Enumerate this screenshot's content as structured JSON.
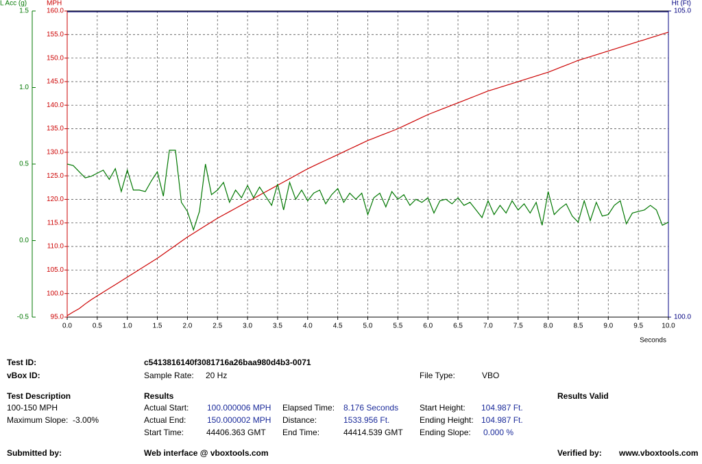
{
  "chart_data": {
    "type": "line",
    "ylabel": "MPH",
    "y2label": "L Acc (g)",
    "y3label": "Ht (Ft)",
    "xlabel": "Seconds",
    "xlim": [
      0,
      10
    ],
    "xticks": [
      {
        "value": 0,
        "label": "0.0"
      },
      0.5,
      {
        "value": 1,
        "label": "1.0"
      },
      1.5,
      {
        "value": 2,
        "label": "2.0"
      },
      2.5,
      {
        "value": 3,
        "label": "3.0"
      },
      3.5,
      {
        "value": 4,
        "label": "4.0"
      },
      4.5,
      {
        "value": 5,
        "label": "5.0"
      },
      5.5,
      {
        "value": 6,
        "label": "6.0"
      },
      6.5,
      {
        "value": 7,
        "label": "7.0"
      },
      7.5,
      {
        "value": 8,
        "label": "8.0"
      },
      8.5,
      {
        "value": 9,
        "label": "9.0"
      },
      9.5,
      {
        "value": 10,
        "label": "10.0"
      }
    ],
    "ylim": [
      95,
      160
    ],
    "yticks": [
      {
        "value": 95,
        "label": "95.0"
      },
      {
        "value": 100,
        "label": "100.0"
      },
      {
        "value": 105,
        "label": "105.0"
      },
      {
        "value": 110,
        "label": "110.0"
      },
      {
        "value": 115,
        "label": "115.0"
      },
      {
        "value": 120,
        "label": "120.0"
      },
      {
        "value": 125,
        "label": "125.0"
      },
      {
        "value": 130,
        "label": "130.0"
      },
      {
        "value": 135,
        "label": "135.0"
      },
      {
        "value": 140,
        "label": "140.0"
      },
      {
        "value": 145,
        "label": "145.0"
      },
      {
        "value": 150,
        "label": "150.0"
      },
      {
        "value": 155,
        "label": "155.0"
      },
      {
        "value": 160,
        "label": "160.0"
      }
    ],
    "y2lim": [
      -0.5,
      1.5
    ],
    "y2ticks": [
      -0.5,
      {
        "value": 0,
        "label": "0.0"
      },
      0.5,
      {
        "value": 1,
        "label": "1.0"
      },
      1.5
    ],
    "y3lim": [
      100,
      105
    ],
    "y3ticks": [
      {
        "value": 100,
        "label": "100.0"
      },
      {
        "value": 105,
        "label": "105.0"
      }
    ],
    "grid": true,
    "x": [
      0,
      0.1,
      0.2,
      0.3,
      0.4,
      0.5,
      0.6,
      0.7,
      0.8,
      0.9,
      1,
      1.1,
      1.2,
      1.3,
      1.4,
      1.5,
      1.6,
      1.7,
      1.8,
      1.9,
      2,
      2.1,
      2.2,
      2.3,
      2.4,
      2.5,
      2.6,
      2.7,
      2.8,
      2.9,
      3,
      3.1,
      3.2,
      3.3,
      3.4,
      3.5,
      3.6,
      3.7,
      3.8,
      3.9,
      4,
      4.1,
      4.2,
      4.3,
      4.4,
      4.5,
      4.6,
      4.7,
      4.8,
      4.9,
      5,
      5.1,
      5.2,
      5.3,
      5.4,
      5.5,
      5.6,
      5.7,
      5.8,
      5.9,
      6,
      6.1,
      6.2,
      6.3,
      6.4,
      6.5,
      6.6,
      6.7,
      6.8,
      6.9,
      7,
      7.1,
      7.2,
      7.3,
      7.4,
      7.5,
      7.6,
      7.7,
      7.8,
      7.9,
      8,
      8.1,
      8.2,
      8.3,
      8.4,
      8.5,
      8.6,
      8.7,
      8.8,
      8.9,
      9,
      9.1,
      9.2,
      9.3,
      9.4,
      9.5,
      9.6,
      9.7,
      9.8,
      9.9,
      10
    ],
    "series": [
      {
        "axis": "y",
        "color": "#cc0000",
        "values": [
          95.3,
          96.1,
          96.8,
          97.8,
          98.7,
          99.5,
          100.3,
          101.1,
          101.9,
          102.7,
          103.5,
          104.3,
          105.1,
          105.9,
          106.7,
          107.5,
          108.4,
          109.3,
          110.2,
          111.1,
          112.0,
          112.8,
          113.6,
          114.4,
          115.2,
          116.0,
          116.7,
          117.4,
          118.1,
          118.8,
          119.5,
          120.2,
          120.9,
          121.6,
          122.3,
          123.0,
          123.7,
          124.4,
          125.1,
          125.8,
          126.5,
          127.1,
          127.7,
          128.3,
          128.9,
          129.5,
          130.1,
          130.7,
          131.3,
          131.9,
          132.5,
          133.0,
          133.5,
          134.0,
          134.5,
          135.0,
          135.6,
          136.2,
          136.8,
          137.4,
          138.0,
          138.5,
          139.0,
          139.5,
          140.0,
          140.5,
          141.0,
          141.5,
          142.0,
          142.5,
          143.0,
          143.4,
          143.8,
          144.2,
          144.6,
          145.0,
          145.4,
          145.8,
          146.2,
          146.6,
          147.0,
          147.5,
          148.0,
          148.5,
          149.0,
          149.5,
          149.9,
          150.3,
          150.7,
          151.1,
          151.5,
          151.9,
          152.3,
          152.7,
          153.1,
          153.5,
          153.9,
          154.3,
          154.7,
          155.1,
          155.5
        ]
      },
      {
        "axis": "y2",
        "color": "#007700",
        "values": [
          0.5,
          0.49,
          0.45,
          0.41,
          0.42,
          0.44,
          0.46,
          0.4,
          0.47,
          0.32,
          0.46,
          0.33,
          0.33,
          0.32,
          0.39,
          0.45,
          0.29,
          0.59,
          0.59,
          0.25,
          0.19,
          0.07,
          0.19,
          0.5,
          0.3,
          0.33,
          0.38,
          0.25,
          0.33,
          0.28,
          0.36,
          0.28,
          0.35,
          0.29,
          0.23,
          0.37,
          0.2,
          0.38,
          0.27,
          0.33,
          0.26,
          0.31,
          0.33,
          0.24,
          0.3,
          0.34,
          0.25,
          0.31,
          0.27,
          0.31,
          0.17,
          0.28,
          0.31,
          0.22,
          0.32,
          0.27,
          0.3,
          0.23,
          0.27,
          0.25,
          0.28,
          0.18,
          0.26,
          0.27,
          0.24,
          0.28,
          0.23,
          0.25,
          0.2,
          0.15,
          0.26,
          0.17,
          0.23,
          0.18,
          0.26,
          0.2,
          0.24,
          0.18,
          0.25,
          0.1,
          0.32,
          0.17,
          0.21,
          0.24,
          0.16,
          0.12,
          0.26,
          0.13,
          0.25,
          0.16,
          0.17,
          0.23,
          0.26,
          0.11,
          0.18,
          0.19,
          0.2,
          0.23,
          0.2,
          0.1,
          0.12
        ]
      },
      {
        "axis": "y3",
        "color": "#000080",
        "x": [
          0,
          10
        ],
        "values": [
          104.987,
          104.987
        ]
      }
    ]
  },
  "report": {
    "test_id_label": "Test ID:",
    "test_id": "c5413816140f3081716a26baa980d4b3-0071",
    "vbox_id_label": "vBox ID:",
    "sample_rate_label": "Sample Rate:",
    "sample_rate": "20 Hz",
    "file_type_label": "File Type:",
    "file_type": "VBO",
    "description_title": "Test Description",
    "description": "100-150 MPH",
    "max_slope": "Maximum Slope:  -3.00%",
    "results_title": "Results",
    "results_valid": "Results Valid",
    "actual_start_label": "Actual Start:",
    "actual_start": "100.000006 MPH",
    "actual_end_label": "Actual End:",
    "actual_end": "150.000002 MPH",
    "start_time_label": "Start Time:",
    "start_time": "44406.363 GMT",
    "elapsed_label": "Elapsed Time:",
    "elapsed": "8.176 Seconds",
    "distance_label": "Distance:",
    "distance": "1533.956 Ft.",
    "end_time_label": "End Time:",
    "end_time": "44414.539 GMT",
    "start_height_label": "Start Height:",
    "start_height": "104.987 Ft.",
    "end_height_label": "Ending Height:",
    "end_height": "104.987 Ft.",
    "end_slope_label": "Ending Slope:",
    "end_slope": "0.000 %",
    "submitted_label": "Submitted by:",
    "web": "Web interface @ vboxtools.com",
    "verified_label": "Verified by:",
    "verifier": "www.vboxtools.com"
  }
}
